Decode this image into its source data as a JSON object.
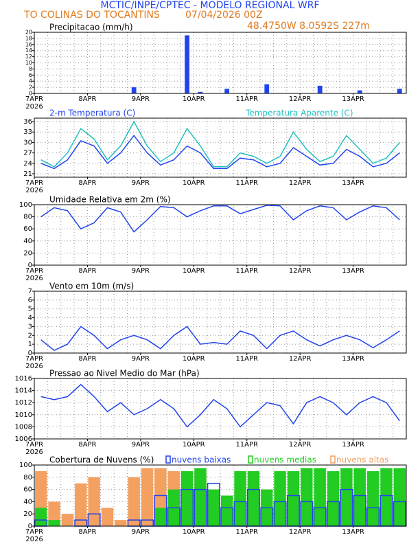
{
  "header": {
    "title": "MCTIC/INPE/CPTEC - MODELO REGIONAL WRF",
    "location": "TO COLINAS DO TOCANTINS",
    "run": "07/04/2026 00Z",
    "coords": "48.4750W 8.0592S 227m"
  },
  "chart_data": [
    {
      "type": "bar",
      "title": "Precipitacao (mm/h)",
      "color": "#2244ee",
      "categories": [
        "7APR",
        null,
        null,
        null,
        "8APR",
        null,
        null,
        null,
        "9APR",
        null,
        null,
        null,
        "10APR",
        null,
        null,
        null,
        "11APR",
        null,
        null,
        null,
        "12APR",
        null,
        null,
        null,
        "13APR",
        null,
        null,
        null
      ],
      "year": "2026",
      "values": [
        0,
        0,
        0,
        0,
        0,
        0,
        0,
        2,
        0,
        0,
        0,
        19,
        0.5,
        0,
        1.5,
        0,
        0,
        3,
        0,
        0,
        0,
        2.5,
        0,
        0,
        1,
        0,
        0,
        1.5
      ],
      "ylim": [
        0,
        20
      ],
      "yticks": [
        0,
        2,
        4,
        6,
        8,
        10,
        12,
        14,
        16,
        18,
        20
      ],
      "grid": true
    },
    {
      "type": "line",
      "categories": [
        "7APR",
        null,
        null,
        null,
        "8APR",
        null,
        null,
        null,
        "9APR",
        null,
        null,
        null,
        "10APR",
        null,
        null,
        null,
        "11APR",
        null,
        null,
        null,
        "12APR",
        null,
        null,
        null,
        "13APR",
        null,
        null,
        null
      ],
      "year": "2026",
      "series": [
        {
          "name": "2-m Temperatura (C)",
          "color": "#2244ee",
          "values": [
            24,
            22.5,
            25,
            30.5,
            29,
            24,
            27,
            32,
            27,
            23.5,
            25,
            29,
            27,
            22.5,
            22.5,
            25.5,
            25,
            23,
            24,
            28.5,
            26,
            23.5,
            24,
            28,
            26,
            23,
            24,
            27
          ]
        },
        {
          "name": "Temperatura Aparente (C)",
          "color": "#20c0c0",
          "values": [
            25,
            23,
            27,
            34,
            31,
            25,
            29,
            36,
            29,
            24.5,
            27,
            34,
            29,
            23,
            23,
            27,
            26,
            24,
            26,
            33,
            28,
            24.5,
            26,
            32,
            28,
            24,
            25.5,
            30
          ]
        }
      ],
      "ylim": [
        20,
        37
      ],
      "yticks": [
        21,
        24,
        27,
        30,
        33,
        36
      ],
      "grid": true
    },
    {
      "type": "line",
      "title": "Umidade Relativa em 2m (%)",
      "color": "#2244ee",
      "categories": [
        "7APR",
        null,
        null,
        null,
        "8APR",
        null,
        null,
        null,
        "9APR",
        null,
        null,
        null,
        "10APR",
        null,
        null,
        null,
        "11APR",
        null,
        null,
        null,
        "12APR",
        null,
        null,
        null,
        "13APR",
        null,
        null,
        null
      ],
      "year": "2026",
      "values": [
        80,
        95,
        90,
        60,
        70,
        95,
        88,
        55,
        75,
        97,
        95,
        80,
        90,
        98,
        98,
        85,
        92,
        99,
        98,
        75,
        90,
        98,
        95,
        75,
        88,
        98,
        95,
        75
      ],
      "ylim": [
        0,
        100
      ],
      "yticks": [
        0,
        20,
        40,
        60,
        80,
        100
      ],
      "grid": true
    },
    {
      "type": "line",
      "title": "Vento em 10m (m/s)",
      "color": "#2244ee",
      "categories": [
        "7APR",
        null,
        null,
        null,
        "8APR",
        null,
        null,
        null,
        "9APR",
        null,
        null,
        null,
        "10APR",
        null,
        null,
        null,
        "11APR",
        null,
        null,
        null,
        "12APR",
        null,
        null,
        null,
        "13APR",
        null,
        null,
        null
      ],
      "year": "2026",
      "values": [
        1.5,
        0.3,
        1,
        3,
        2,
        0.5,
        1.5,
        2,
        1.5,
        0.5,
        2,
        3,
        1,
        1.2,
        1,
        2.5,
        2,
        0.5,
        2,
        2.5,
        1.5,
        0.8,
        1.5,
        2,
        1.5,
        0.6,
        1.5,
        2.5
      ],
      "ylim": [
        0,
        7
      ],
      "yticks": [
        0,
        1,
        2,
        3,
        4,
        5,
        6,
        7
      ],
      "grid": true
    },
    {
      "type": "line",
      "title": "Pressao ao Nivel Medio do Mar (hPa)",
      "color": "#2244ee",
      "categories": [
        "7APR",
        null,
        null,
        null,
        "8APR",
        null,
        null,
        null,
        "9APR",
        null,
        null,
        null,
        "10APR",
        null,
        null,
        null,
        "11APR",
        null,
        null,
        null,
        "12APR",
        null,
        null,
        null,
        "13APR",
        null,
        null,
        null
      ],
      "year": "2026",
      "values": [
        1013,
        1012.5,
        1013,
        1015,
        1013,
        1010.5,
        1012,
        1010,
        1011,
        1012.5,
        1011,
        1008,
        1010,
        1012.5,
        1011,
        1008,
        1010,
        1012,
        1011.5,
        1008.5,
        1012,
        1013,
        1012,
        1010,
        1012,
        1013,
        1012,
        1009
      ],
      "ylim": [
        1006,
        1016
      ],
      "yticks": [
        1006,
        1008,
        1010,
        1012,
        1014,
        1016
      ],
      "grid": true
    },
    {
      "type": "bar",
      "title": "Cobertura de Nuvens (%)",
      "categories": [
        "7APR",
        null,
        null,
        null,
        "8APR",
        null,
        null,
        null,
        "9APR",
        null,
        null,
        null,
        "10APR",
        null,
        null,
        null,
        "11APR",
        null,
        null,
        null,
        "12APR",
        null,
        null,
        null,
        "13APR",
        null,
        null,
        null
      ],
      "year": "2026",
      "series": [
        {
          "name": "nuvens altas",
          "color": "#f4a060",
          "values": [
            90,
            40,
            20,
            70,
            80,
            30,
            10,
            80,
            95,
            95,
            90,
            60,
            90,
            20,
            10,
            60,
            20,
            10,
            30,
            20,
            30,
            10,
            10,
            20,
            30,
            10,
            20,
            40
          ]
        },
        {
          "name": "nuvens medias",
          "color": "#22cc22",
          "values": [
            30,
            10,
            0,
            0,
            0,
            0,
            0,
            0,
            0,
            30,
            60,
            90,
            95,
            60,
            50,
            90,
            90,
            60,
            90,
            90,
            95,
            95,
            90,
            95,
            95,
            90,
            95,
            95
          ]
        },
        {
          "name": "nuvens baixas",
          "color": "#2244ee",
          "outline": true,
          "values": [
            10,
            0,
            0,
            10,
            20,
            0,
            0,
            10,
            10,
            50,
            30,
            60,
            60,
            70,
            30,
            40,
            60,
            30,
            40,
            50,
            40,
            30,
            40,
            60,
            50,
            30,
            50,
            40
          ]
        }
      ],
      "ylim": [
        0,
        100
      ],
      "yticks": [
        0,
        20,
        40,
        60,
        80,
        100
      ],
      "grid": true
    }
  ]
}
